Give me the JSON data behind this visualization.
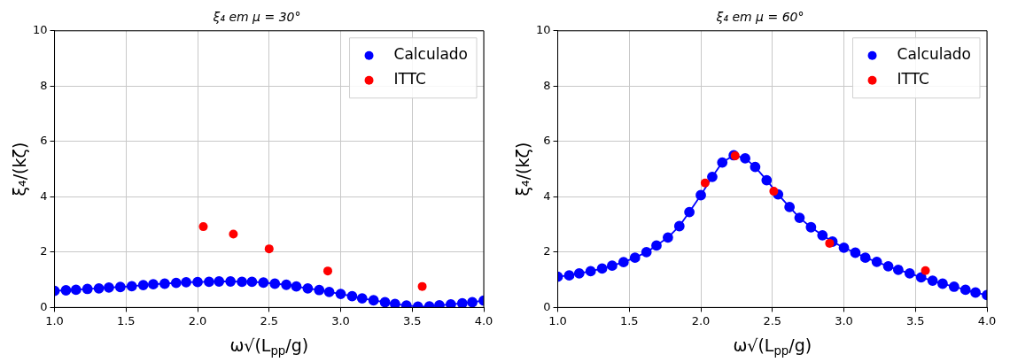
{
  "chart_data": [
    {
      "type": "line",
      "title": "ξ₄ em μ = 30°",
      "xlabel": "ω√(L$_{pp}$/g)",
      "ylabel": "ξ₄/(kζ)",
      "xlim": [
        1.0,
        4.0
      ],
      "ylim": [
        0,
        10
      ],
      "xticks": [
        {
          "value": 1.0,
          "label": "1.0"
        },
        {
          "value": 1.5,
          "label": "1.5"
        },
        {
          "value": 2.0,
          "label": "2.0"
        },
        {
          "value": 2.5,
          "label": "2.5"
        },
        {
          "value": 3.0,
          "label": "3.0"
        },
        {
          "value": 3.5,
          "label": "3.5"
        },
        {
          "value": 4.0,
          "label": "4.0"
        }
      ],
      "yticks": [
        0,
        2,
        4,
        6,
        8,
        10
      ],
      "grid": true,
      "legend": "top right",
      "marker": "circle",
      "series": [
        {
          "name": "Calculado",
          "type": "line",
          "color": "#0000ff",
          "x": [
            1.0,
            1.08,
            1.15,
            1.23,
            1.31,
            1.38,
            1.46,
            1.54,
            1.62,
            1.69,
            1.77,
            1.85,
            1.92,
            2.0,
            2.08,
            2.15,
            2.23,
            2.31,
            2.38,
            2.46,
            2.54,
            2.62,
            2.69,
            2.77,
            2.85,
            2.92,
            3.0,
            3.08,
            3.15,
            3.23,
            3.31,
            3.38,
            3.46,
            3.54,
            3.62,
            3.69,
            3.77,
            3.85,
            3.92,
            4.0
          ],
          "values": [
            0.6,
            0.62,
            0.64,
            0.67,
            0.69,
            0.72,
            0.74,
            0.77,
            0.81,
            0.84,
            0.86,
            0.89,
            0.91,
            0.92,
            0.93,
            0.94,
            0.94,
            0.93,
            0.93,
            0.9,
            0.86,
            0.82,
            0.76,
            0.69,
            0.63,
            0.56,
            0.49,
            0.41,
            0.33,
            0.26,
            0.19,
            0.13,
            0.07,
            0.03,
            0.04,
            0.08,
            0.11,
            0.15,
            0.19,
            0.25
          ]
        },
        {
          "name": "ITTC",
          "type": "scatter",
          "color": "#ff0000",
          "x": [
            2.04,
            2.25,
            2.5,
            2.91,
            3.57
          ],
          "values": [
            2.92,
            2.65,
            2.12,
            1.32,
            0.76
          ]
        }
      ]
    },
    {
      "type": "line",
      "title": "ξ₄ em μ = 60°",
      "xlabel": "ω√(L$_{pp}$/g)",
      "ylabel": "ξ₄/(kζ)",
      "xlim": [
        1.0,
        4.0
      ],
      "ylim": [
        0,
        10
      ],
      "xticks": [
        {
          "value": 1.0,
          "label": "1.0"
        },
        {
          "value": 1.5,
          "label": "1.5"
        },
        {
          "value": 2.0,
          "label": "2.0"
        },
        {
          "value": 2.5,
          "label": "2.5"
        },
        {
          "value": 3.0,
          "label": "3.0"
        },
        {
          "value": 3.5,
          "label": "3.5"
        },
        {
          "value": 4.0,
          "label": "4.0"
        }
      ],
      "yticks": [
        0,
        2,
        4,
        6,
        8,
        10
      ],
      "grid": true,
      "legend": "top right",
      "marker": "circle",
      "series": [
        {
          "name": "Calculado",
          "type": "line",
          "color": "#0000ff",
          "x": [
            1.0,
            1.08,
            1.15,
            1.23,
            1.31,
            1.38,
            1.46,
            1.54,
            1.62,
            1.69,
            1.77,
            1.85,
            1.92,
            2.0,
            2.08,
            2.15,
            2.23,
            2.31,
            2.38,
            2.46,
            2.54,
            2.62,
            2.69,
            2.77,
            2.85,
            2.92,
            3.0,
            3.08,
            3.15,
            3.23,
            3.31,
            3.38,
            3.46,
            3.54,
            3.62,
            3.69,
            3.77,
            3.85,
            3.92,
            4.0
          ],
          "values": [
            1.11,
            1.16,
            1.23,
            1.31,
            1.41,
            1.51,
            1.64,
            1.8,
            2.0,
            2.24,
            2.53,
            2.94,
            3.45,
            4.06,
            4.72,
            5.24,
            5.5,
            5.39,
            5.08,
            4.6,
            4.09,
            3.63,
            3.24,
            2.9,
            2.61,
            2.38,
            2.16,
            1.98,
            1.8,
            1.65,
            1.49,
            1.36,
            1.23,
            1.09,
            0.97,
            0.86,
            0.75,
            0.64,
            0.54,
            0.45
          ]
        },
        {
          "name": "ITTC",
          "type": "scatter",
          "color": "#ff0000",
          "x": [
            2.03,
            2.24,
            2.51,
            2.9,
            3.57
          ],
          "values": [
            4.5,
            5.48,
            4.2,
            2.32,
            1.33
          ]
        }
      ]
    }
  ]
}
